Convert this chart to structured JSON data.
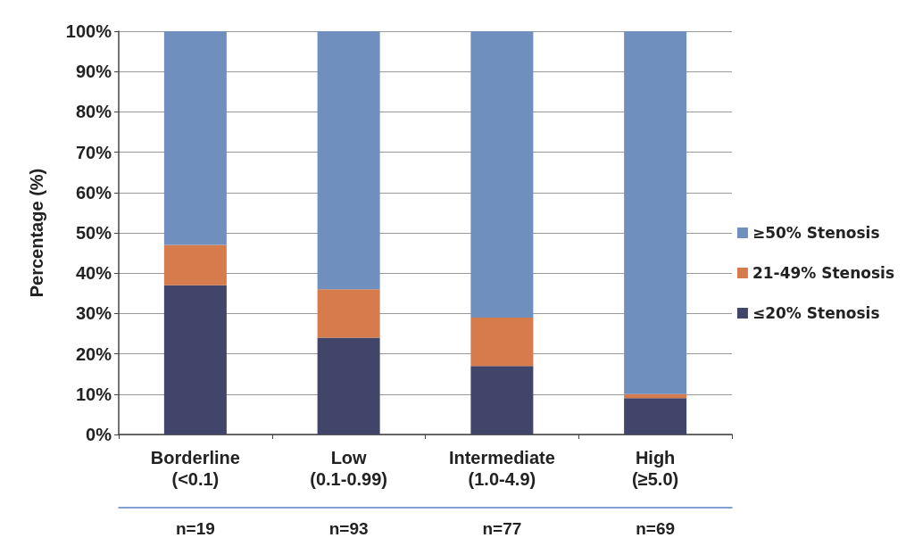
{
  "chart_data": {
    "type": "bar",
    "stacked": true,
    "ylabel": "Percentage (%)",
    "categories": [
      "Borderline\n(<0.1)",
      "Low\n(0.1-0.99)",
      "Intermediate\n(1.0-4.9)",
      "High\n(≥5.0)"
    ],
    "series": [
      {
        "name": "≤20% Stenosis",
        "color": "#41456a",
        "values": [
          37,
          24,
          17,
          9
        ]
      },
      {
        "name": "21-49% Stenosis",
        "color": "#d57b4c",
        "values": [
          10,
          12,
          12,
          1
        ]
      },
      {
        "name": "≥50% Stenosis",
        "color": "#6f8fbf",
        "values": [
          53,
          64,
          71,
          90
        ]
      }
    ],
    "ylim": [
      0,
      100
    ],
    "yticks": [
      {
        "value": 0,
        "label": "0%"
      },
      {
        "value": 10,
        "label": "10%"
      },
      {
        "value": 20,
        "label": "20%"
      },
      {
        "value": 30,
        "label": "30%"
      },
      {
        "value": 40,
        "label": "40%"
      },
      {
        "value": 50,
        "label": "50%"
      },
      {
        "value": 60,
        "label": "60%"
      },
      {
        "value": 70,
        "label": "70%"
      },
      {
        "value": 80,
        "label": "80%"
      },
      {
        "value": 90,
        "label": "90%"
      },
      {
        "value": 100,
        "label": "100%"
      }
    ],
    "grid": "y",
    "legend": "right",
    "annotations": [
      "n=19",
      "n=93",
      "n=77",
      "n=69"
    ]
  }
}
